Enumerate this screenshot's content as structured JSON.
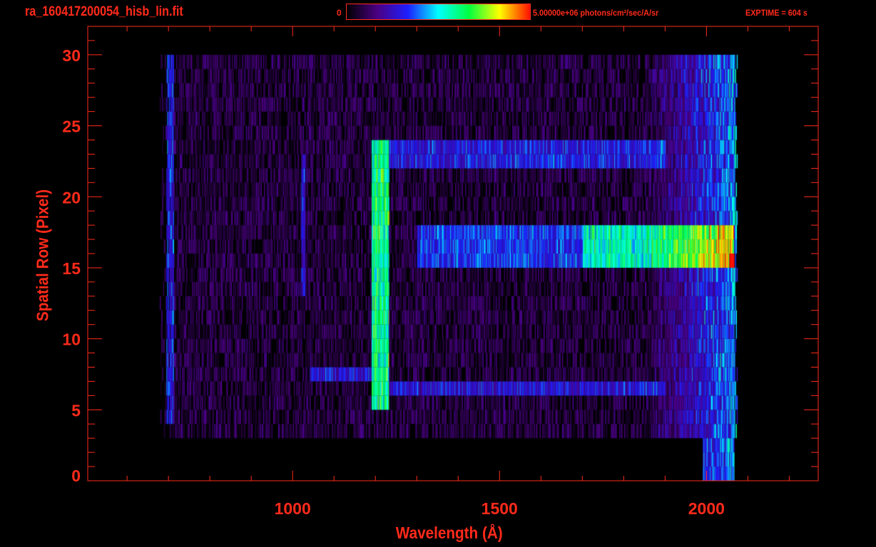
{
  "header": {
    "filename": "ra_160417200054_hisb_lin.fit",
    "colorbar_min_label": "0",
    "colorbar_max_label": "5.00000e+06 photons/cm²/sec/A/sr",
    "exptime_label": "EXPTIME = 604 s"
  },
  "colors": {
    "axis": "#ff2a1a",
    "background": "#000000"
  },
  "chart_data": {
    "type": "heatmap",
    "title": "ra_160417200054_hisb_lin.fit",
    "xlabel": "Wavelength (Å)",
    "ylabel": "Spatial Row (Pixel)",
    "xlim": [
      505,
      2270
    ],
    "ylim": [
      0,
      32
    ],
    "x_ticks": [
      1000,
      1500,
      2000
    ],
    "x_tick_labels": [
      "1000",
      "1500",
      "2000"
    ],
    "y_ticks": [
      0,
      5,
      10,
      15,
      20,
      25,
      30
    ],
    "y_tick_labels": [
      "0",
      "5",
      "10",
      "15",
      "20",
      "25",
      "30"
    ],
    "x_minor_step": 100,
    "y_minor_step": 1,
    "grid": false,
    "colorscale": {
      "min": 0,
      "max": 5000000,
      "units": "photons/cm²/sec/A/sr",
      "stops": [
        "#000000",
        "#4b0082",
        "#1e1eff",
        "#00ffff",
        "#00ff40",
        "#ffff00",
        "#ff1000"
      ]
    },
    "rows": {
      "first_full": 3,
      "last": 29,
      "wavelength_start": 690,
      "wavelength_end": 2065
    },
    "background_level": 0.12,
    "red_rise": {
      "from": 1850,
      "to": 2065,
      "level": 0.38
    },
    "features": [
      {
        "wavelength_range": [
          1190,
          1232
        ],
        "rows": [
          5,
          23
        ],
        "intensity": 0.55
      },
      {
        "wavelength_range": [
          1700,
          2065
        ],
        "rows": [
          15,
          17
        ],
        "intensity": 0.5
      },
      {
        "wavelength_range": [
          1300,
          1700
        ],
        "rows": [
          15,
          17
        ],
        "intensity": 0.28
      },
      {
        "wavelength_range": [
          1040,
          1190
        ],
        "rows": [
          7,
          7
        ],
        "intensity": 0.22
      },
      {
        "wavelength_range": [
          1232,
          1900
        ],
        "rows": [
          6,
          6
        ],
        "intensity": 0.22
      },
      {
        "wavelength_range": [
          1232,
          1900
        ],
        "rows": [
          22,
          23
        ],
        "intensity": 0.24
      },
      {
        "wavelength_range": [
          695,
          712
        ],
        "rows": [
          4,
          29
        ],
        "intensity": 0.25
      },
      {
        "wavelength_range": [
          1020,
          1030
        ],
        "rows": [
          13,
          22
        ],
        "intensity": 0.22
      },
      {
        "wavelength_range": [
          2055,
          2065
        ],
        "rows": [
          15,
          15
        ],
        "intensity": 0.9
      }
    ]
  }
}
